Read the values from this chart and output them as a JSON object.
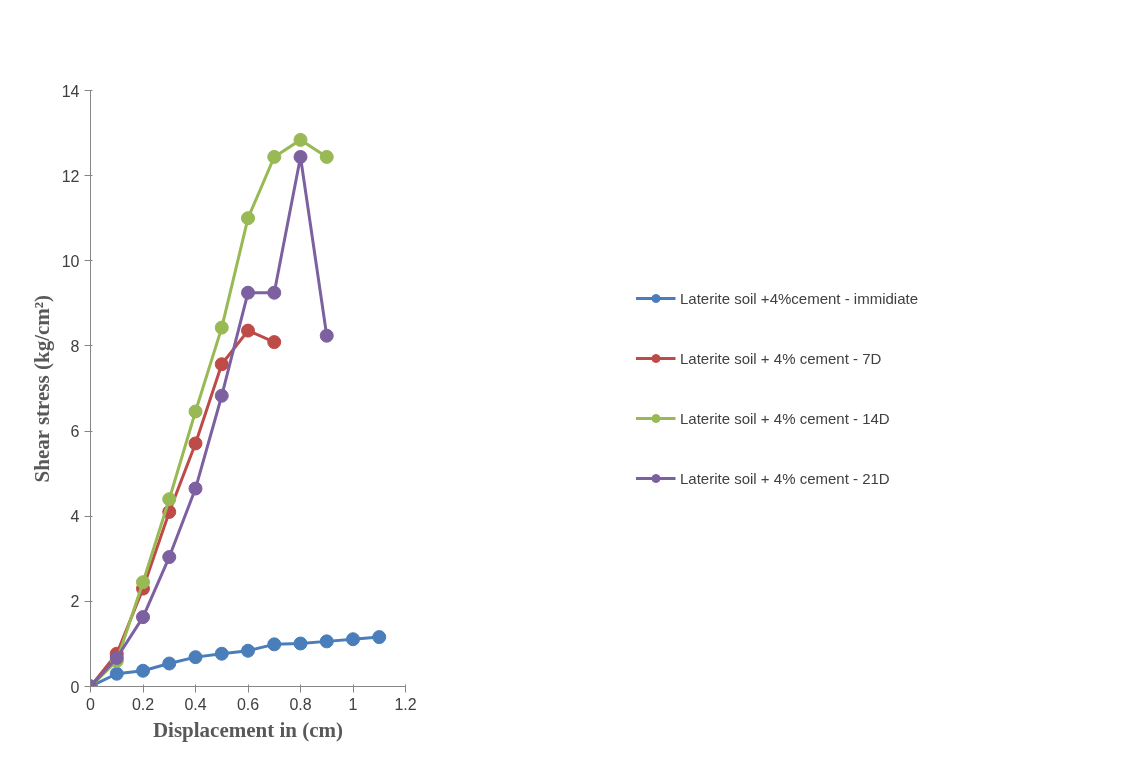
{
  "chart_data": {
    "type": "line",
    "xlabel": "Displacement in (cm)",
    "ylabel": "Shear stress (kg/cm²)",
    "xlim": [
      0,
      1.2
    ],
    "xticks": [
      0,
      0.2,
      0.4,
      0.6,
      0.8,
      1,
      1.2
    ],
    "ylim": [
      0,
      14
    ],
    "yticks": [
      0,
      2,
      4,
      6,
      8,
      10,
      12,
      14
    ],
    "grid": false,
    "legend": "right",
    "marker": "circle",
    "line_style": "solid",
    "series": [
      {
        "name": "Laterite soil +4%cement - immidiate",
        "color": "#4a7ebb",
        "x": [
          0,
          0.1,
          0.2,
          0.3,
          0.4,
          0.5,
          0.6,
          0.7,
          0.8,
          0.9,
          1,
          1.1
        ],
        "values": [
          0,
          0.3,
          0.37,
          0.54,
          0.69,
          0.77,
          0.84,
          0.99,
          1.01,
          1.06,
          1.11,
          1.16
        ]
      },
      {
        "name": "Laterite soil + 4% cement - 7D",
        "color": "#be4b48",
        "x": [
          0,
          0.1,
          0.2,
          0.3,
          0.4,
          0.5,
          0.6,
          0.7
        ],
        "values": [
          0,
          0.77,
          2.3,
          4.1,
          5.71,
          7.57,
          8.36,
          8.09
        ]
      },
      {
        "name": "Laterite soil + 4% cement - 14D",
        "color": "#98b954",
        "x": [
          0,
          0.1,
          0.2,
          0.3,
          0.4,
          0.5,
          0.6,
          0.7,
          0.8,
          0.9
        ],
        "values": [
          0,
          0.6,
          2.45,
          4.4,
          6.46,
          8.43,
          11.0,
          12.44,
          12.84,
          12.44
        ]
      },
      {
        "name": "Laterite soil + 4% cement - 21D",
        "color": "#7d60a0",
        "x": [
          0,
          0.1,
          0.2,
          0.3,
          0.4,
          0.5,
          0.6,
          0.7,
          0.8,
          0.9
        ],
        "values": [
          0,
          0.67,
          1.63,
          3.04,
          4.65,
          6.83,
          9.25,
          9.25,
          12.44,
          8.24
        ]
      }
    ]
  }
}
